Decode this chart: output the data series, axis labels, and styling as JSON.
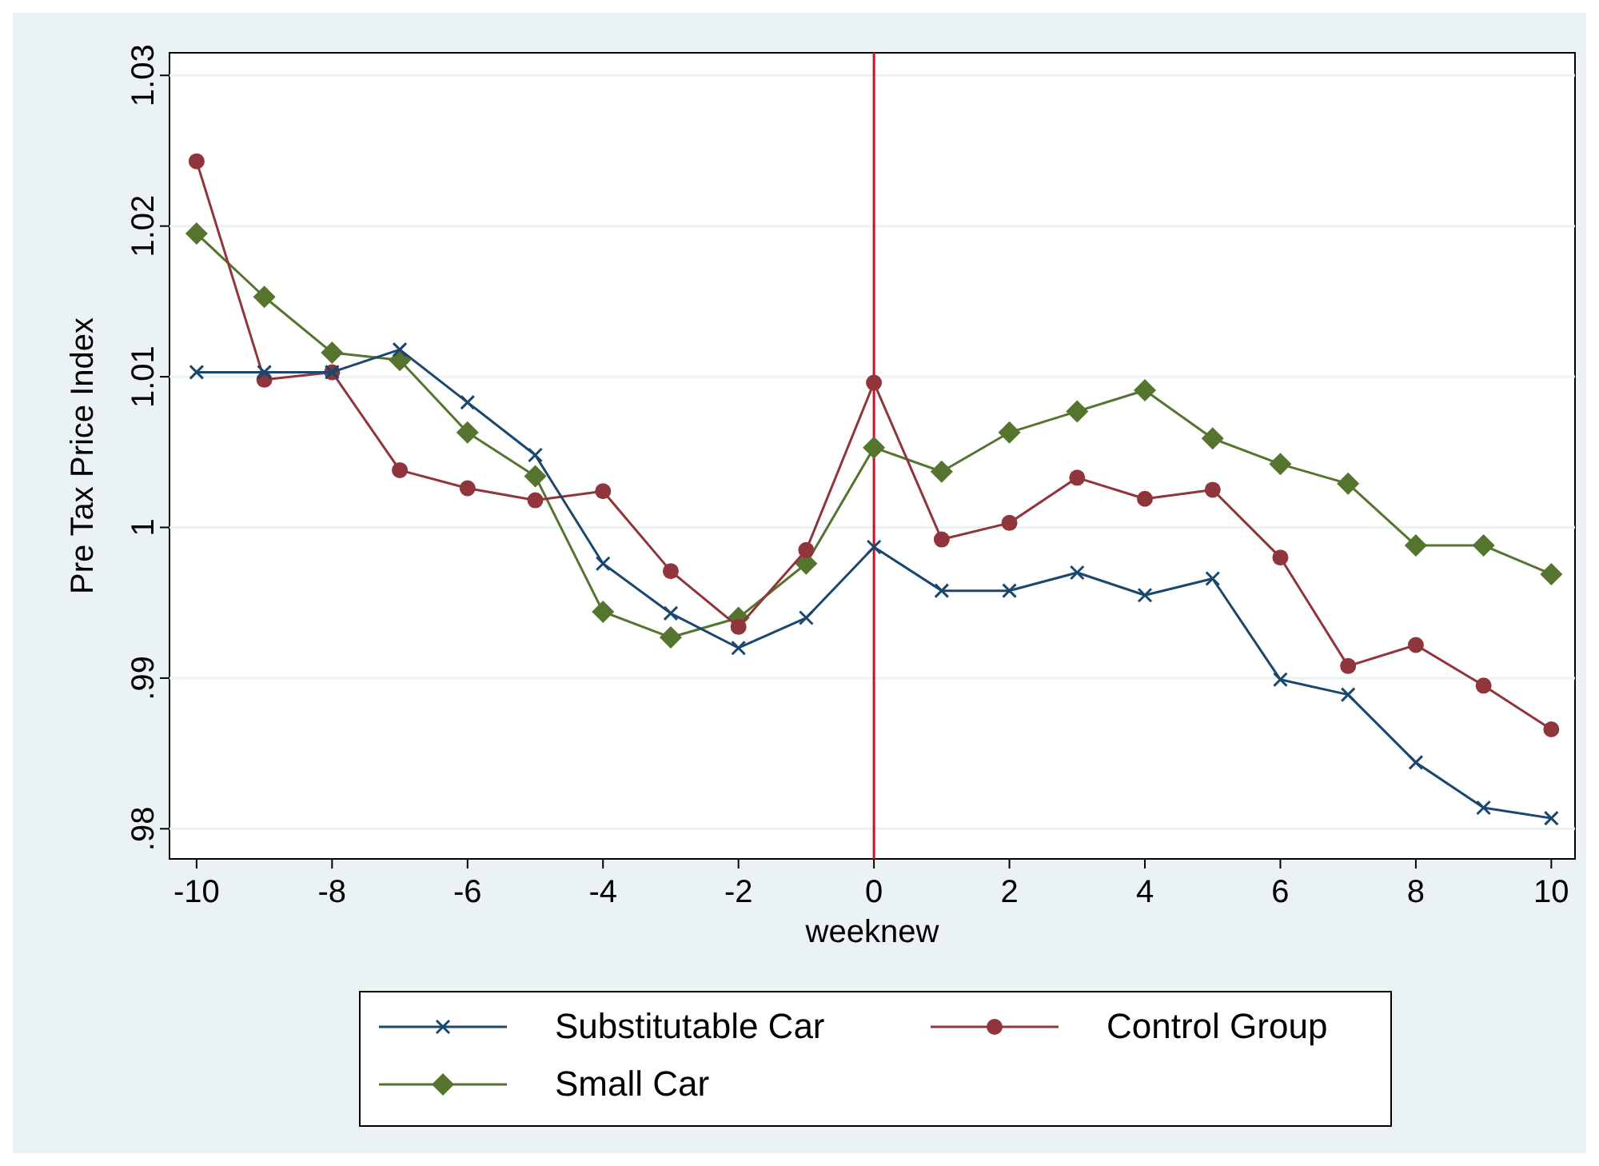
{
  "chart_data": {
    "type": "line",
    "xlabel": "weeknew",
    "ylabel": "Pre Tax Price Index",
    "x": [
      -10,
      -9,
      -8,
      -7,
      -6,
      -5,
      -4,
      -3,
      -2,
      -1,
      0,
      1,
      2,
      3,
      4,
      5,
      6,
      7,
      8,
      9,
      10
    ],
    "xlim": [
      -10.4,
      10.35
    ],
    "xticks": [
      {
        "value": -10,
        "label": "-10"
      },
      {
        "value": -8,
        "label": "-8"
      },
      {
        "value": -6,
        "label": "-6"
      },
      {
        "value": -4,
        "label": "-4"
      },
      {
        "value": -2,
        "label": "-2"
      },
      0,
      2,
      4,
      6,
      8,
      10
    ],
    "ylim": [
      0.978,
      1.0315
    ],
    "yticks": [
      {
        "value": 0.98,
        "label": ".98"
      },
      {
        "value": 0.99,
        "label": ".99"
      },
      1,
      1.01,
      1.02,
      1.03
    ],
    "grid": "y",
    "legend": "bottom",
    "ref_lines": [
      {
        "axis": "x",
        "value": 0,
        "color": "#c8102e"
      }
    ],
    "series": [
      {
        "name": "Substitutable Car",
        "color": "#1a476f",
        "marker": "cross",
        "values": [
          1.0103,
          1.0103,
          1.0103,
          1.0118,
          1.0083,
          1.0048,
          0.9976,
          0.9943,
          0.992,
          0.994,
          0.9987,
          0.9958,
          0.9958,
          0.997,
          0.9955,
          0.9966,
          0.9899,
          0.9889,
          0.9844,
          0.9814,
          0.9807
        ]
      },
      {
        "name": "Control Group",
        "color": "#90353b",
        "marker": "circle",
        "values": [
          1.0243,
          1.0098,
          1.0103,
          1.0038,
          1.0026,
          1.0018,
          1.0024,
          0.9971,
          0.9934,
          0.9985,
          1.0096,
          0.9992,
          1.0003,
          1.0033,
          1.0019,
          1.0025,
          0.998,
          0.9908,
          0.9922,
          0.9895,
          0.9866
        ]
      },
      {
        "name": "Small Car",
        "color": "#55752f",
        "marker": "diamond",
        "values": [
          1.0195,
          1.0153,
          1.0116,
          1.0111,
          1.0063,
          1.0034,
          0.9944,
          0.9927,
          0.994,
          0.9976,
          1.0053,
          1.0037,
          1.0063,
          1.0077,
          1.0091,
          1.0059,
          1.0042,
          1.0029,
          0.9988,
          0.9988,
          0.9969
        ]
      }
    ]
  }
}
